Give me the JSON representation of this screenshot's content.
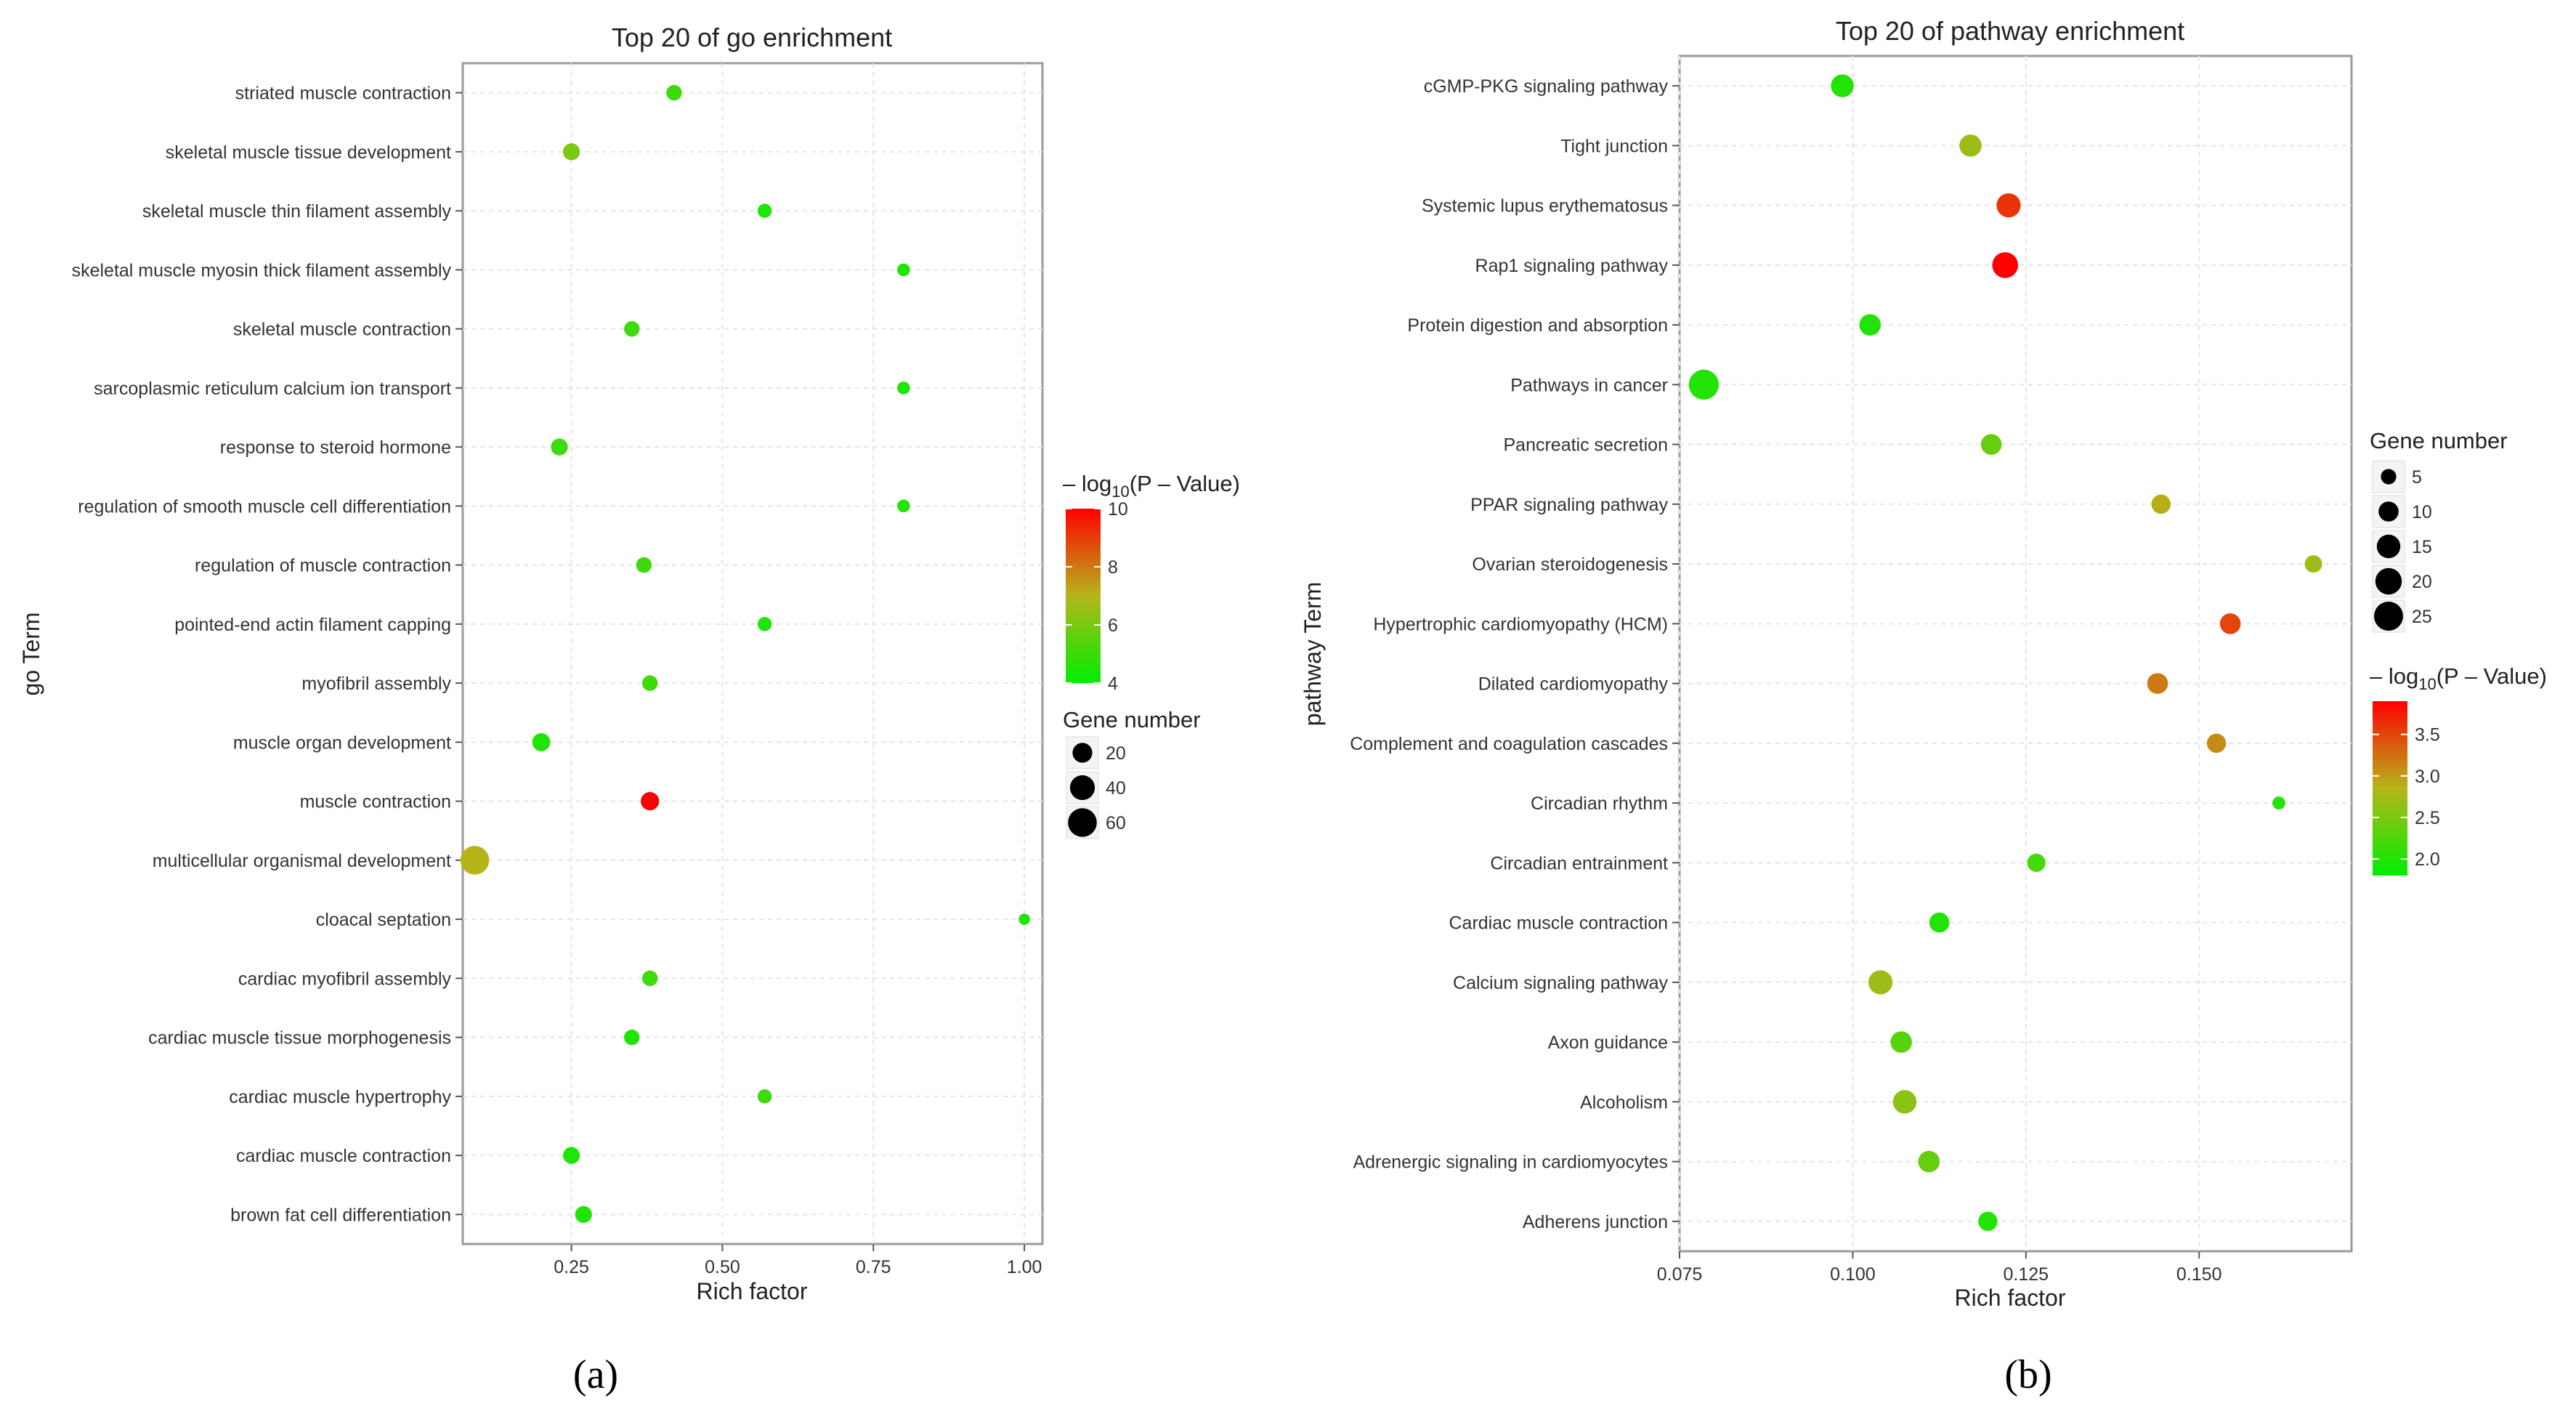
{
  "colors": {
    "low": "#00ee00",
    "mid": "#b5b51a",
    "high": "#ff0000",
    "panel_bg": "#ffffff",
    "grid": "#e4e4e4",
    "axis": "#9a9a9a",
    "text": "#333333"
  },
  "chart_data": [
    {
      "type": "scatter",
      "panel": "(a)",
      "title": "Top 20 of go enrichment",
      "xlabel": "Rich factor",
      "ylabel": "go Term",
      "xlim": [
        0.07,
        1.03
      ],
      "x_ticks": [
        0.25,
        0.5,
        0.75,
        1.0
      ],
      "x_tick_labels": [
        "0.25",
        "0.50",
        "0.75",
        "1.00"
      ],
      "grid": true,
      "legend_position": "right",
      "color_legend": {
        "title_prefix": "– log",
        "title_sub": "10",
        "title_suffix": "(P – Value)",
        "range": [
          4,
          10
        ],
        "ticks": [
          10,
          8,
          6,
          4
        ],
        "tick_labels": [
          "10",
          "8",
          "6",
          "4"
        ]
      },
      "size_legend": {
        "title": "Gene number",
        "values": [
          20,
          40,
          60
        ],
        "labels": [
          "20",
          "40",
          "60"
        ],
        "max": 70
      },
      "categories": [
        "striated muscle contraction",
        "skeletal muscle tissue development",
        "skeletal muscle thin filament assembly",
        "skeletal muscle myosin thick filament assembly",
        "skeletal muscle contraction",
        "sarcoplasmic reticulum calcium ion transport",
        "response to steroid hormone",
        "regulation of smooth muscle cell differentiation",
        "regulation of muscle contraction",
        "pointed-end actin filament capping",
        "myofibril assembly",
        "muscle organ development",
        "muscle contraction",
        "multicellular organismal development",
        "cloacal septation",
        "cardiac myofibril assembly",
        "cardiac muscle tissue morphogenesis",
        "cardiac muscle hypertrophy",
        "cardiac muscle contraction",
        "brown fat cell differentiation"
      ],
      "x": [
        0.42,
        0.25,
        0.57,
        0.8,
        0.35,
        0.8,
        0.23,
        0.8,
        0.37,
        0.57,
        0.38,
        0.2,
        0.38,
        0.09,
        1.0,
        0.38,
        0.35,
        0.57,
        0.25,
        0.27
      ],
      "neglog10_p": [
        5.0,
        6.0,
        4.5,
        4.5,
        5.0,
        4.5,
        5.0,
        4.5,
        5.0,
        4.5,
        5.0,
        4.5,
        10.0,
        7.0,
        4.5,
        5.0,
        4.5,
        5.0,
        4.5,
        4.5
      ],
      "gene_number": [
        9,
        12,
        6,
        4,
        9,
        4,
        12,
        4,
        9,
        6,
        9,
        15,
        16,
        60,
        2,
        9,
        9,
        6,
        12,
        12
      ]
    },
    {
      "type": "scatter",
      "panel": "(b)",
      "title": "Top 20 of pathway enrichment",
      "xlabel": "Rich factor",
      "ylabel": "pathway Term",
      "xlim": [
        0.075,
        0.172
      ],
      "x_ticks": [
        0.075,
        0.1,
        0.125,
        0.15
      ],
      "x_tick_labels": [
        "0.075",
        "0.100",
        "0.125",
        "0.150"
      ],
      "grid": true,
      "legend_position": "right",
      "size_legend": {
        "title": "Gene number",
        "values": [
          5,
          10,
          15,
          20,
          25
        ],
        "labels": [
          "5",
          "10",
          "15",
          "20",
          "25"
        ],
        "max": 25
      },
      "color_legend": {
        "title_prefix": "– log",
        "title_sub": "10",
        "title_suffix": "(P – Value)",
        "range": [
          1.8,
          3.9
        ],
        "ticks": [
          3.5,
          3.0,
          2.5,
          2.0
        ],
        "tick_labels": [
          "3.5",
          "3.0",
          "2.5",
          "2.0"
        ]
      },
      "categories": [
        "cGMP-PKG signaling pathway",
        "Tight junction",
        "Systemic lupus erythematosus",
        "Rap1 signaling pathway",
        "Protein digestion and absorption",
        "Pathways in cancer",
        "Pancreatic secretion",
        "PPAR signaling pathway",
        "Ovarian steroidogenesis",
        "Hypertrophic cardiomyopathy (HCM)",
        "Dilated cardiomyopathy",
        "Complement and coagulation cascades",
        "Circadian rhythm",
        "Circadian entrainment",
        "Cardiac muscle contraction",
        "Calcium signaling pathway",
        "Axon guidance",
        "Alcoholism",
        "Adrenergic signaling in cardiomyocytes",
        "Adherens junction"
      ],
      "x": [
        0.0985,
        0.117,
        0.1225,
        0.122,
        0.1025,
        0.0785,
        0.12,
        0.1445,
        0.1665,
        0.1545,
        0.144,
        0.1525,
        0.1615,
        0.1265,
        0.1125,
        0.104,
        0.107,
        0.1075,
        0.111,
        0.1195
      ],
      "neglog10_p": [
        2.0,
        2.7,
        3.6,
        3.9,
        2.0,
        2.0,
        2.4,
        2.9,
        2.7,
        3.5,
        3.2,
        3.1,
        2.0,
        2.2,
        2.0,
        2.7,
        2.3,
        2.6,
        2.4,
        2.0
      ],
      "gene_number": [
        14,
        13,
        16,
        19,
        12,
        27,
        11,
        9,
        7,
        11,
        11,
        9,
        3,
        8,
        10,
        16,
        12,
        15,
        12,
        9
      ]
    }
  ]
}
